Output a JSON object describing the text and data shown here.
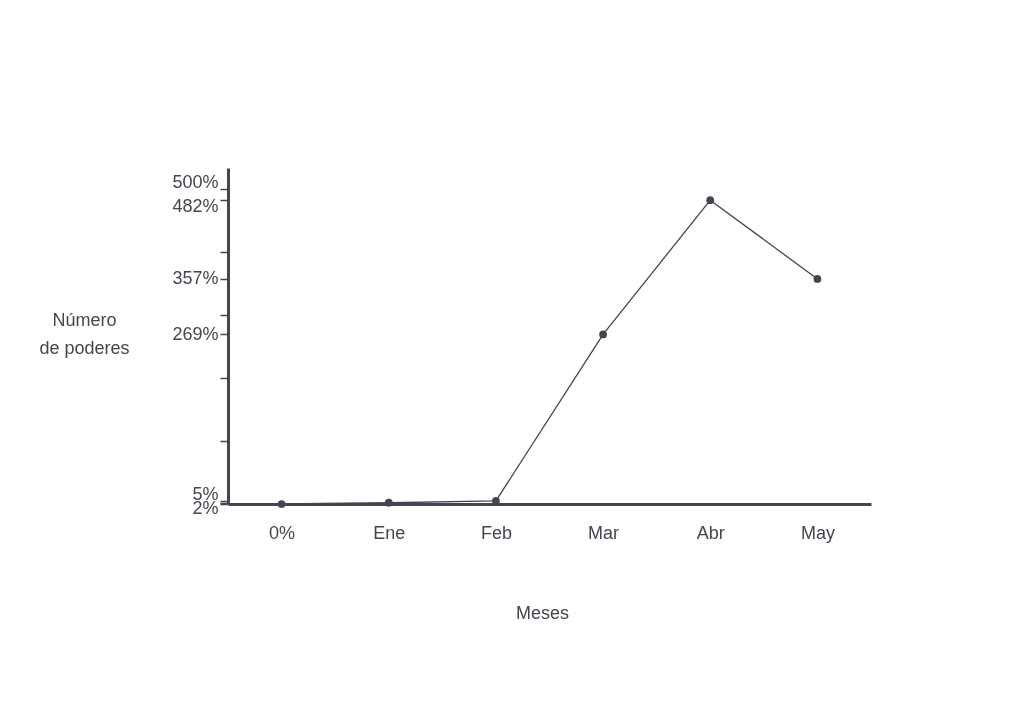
{
  "chart_data": {
    "type": "line",
    "xlabel": "Meses",
    "ylabel": "Número de poderes",
    "categories": [
      "0%",
      "Ene",
      "Feb",
      "Mar",
      "Abr",
      "May"
    ],
    "series": [
      {
        "color": "#45454f",
        "values": [
          0,
          2,
          5,
          269,
          482,
          357
        ]
      }
    ],
    "ylim": [
      0,
      533
    ],
    "yticks": [
      {
        "value": 0,
        "label": null
      },
      {
        "value": 2,
        "label": "2%"
      },
      {
        "value": 5,
        "label": "5%"
      },
      {
        "value": 100,
        "label": null
      },
      {
        "value": 200,
        "label": null
      },
      {
        "value": 269,
        "label": "269%"
      },
      {
        "value": 300,
        "label": null
      },
      {
        "value": 357,
        "label": "357%"
      },
      {
        "value": 400,
        "label": null
      },
      {
        "value": 482,
        "label": "482%"
      },
      {
        "value": 500,
        "label": "500%"
      }
    ],
    "marker": "circle",
    "line_style": "solid",
    "grid": false,
    "legend": false
  }
}
